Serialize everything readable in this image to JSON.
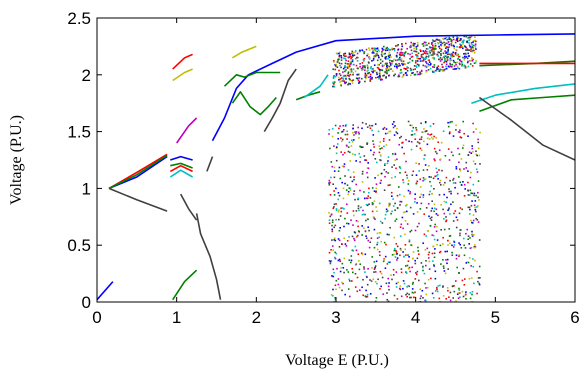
{
  "chart_data": {
    "type": "scatter",
    "title": "",
    "xlabel": "Voltage E (P.U.)",
    "ylabel": "Voltage  (P.U.)",
    "xlim": [
      0,
      6
    ],
    "ylim": [
      0,
      2.5
    ],
    "xticks": [
      "0",
      "1",
      "2",
      "3",
      "4",
      "5",
      "6"
    ],
    "yticks": [
      "0",
      "0.5",
      "1",
      "1.5",
      "2",
      "2.5"
    ],
    "grid": false,
    "colors": [
      "#0000ff",
      "#008000",
      "#ff0000",
      "#00bfbf",
      "#bf00bf",
      "#bfbf00",
      "#404040"
    ],
    "series": [
      {
        "color": "#0000ff",
        "points": [
          [
            0,
            0.02
          ],
          [
            0.2,
            0.18
          ]
        ]
      },
      {
        "color": "#0000ff",
        "points": [
          [
            0.15,
            1.0
          ],
          [
            0.5,
            1.1
          ],
          [
            0.88,
            1.28
          ]
        ]
      },
      {
        "color": "#404040",
        "points": [
          [
            0.15,
            1.0
          ],
          [
            0.5,
            0.9
          ],
          [
            0.88,
            0.8
          ]
        ]
      },
      {
        "color": "#ff0000",
        "points": [
          [
            0.15,
            1.0
          ],
          [
            0.5,
            1.14
          ],
          [
            0.88,
            1.3
          ]
        ]
      },
      {
        "color": "#008000",
        "points": [
          [
            0.15,
            1.0
          ],
          [
            0.5,
            1.12
          ],
          [
            0.88,
            1.29
          ]
        ]
      },
      {
        "color": "#0000ff",
        "points": [
          [
            0.92,
            1.25
          ],
          [
            1.05,
            1.28
          ],
          [
            1.2,
            1.25
          ]
        ]
      },
      {
        "color": "#00bfbf",
        "points": [
          [
            0.92,
            1.1
          ],
          [
            1.05,
            1.16
          ],
          [
            1.2,
            1.1
          ]
        ]
      },
      {
        "color": "#008000",
        "points": [
          [
            0.92,
            1.2
          ],
          [
            1.05,
            1.22
          ],
          [
            1.2,
            1.18
          ]
        ]
      },
      {
        "color": "#ff0000",
        "points": [
          [
            0.92,
            1.15
          ],
          [
            1.05,
            1.2
          ],
          [
            1.2,
            1.15
          ]
        ]
      },
      {
        "color": "#ff0000",
        "points": [
          [
            0.95,
            2.05
          ],
          [
            1.1,
            2.15
          ],
          [
            1.2,
            2.18
          ]
        ]
      },
      {
        "color": "#bfbf00",
        "points": [
          [
            0.95,
            1.95
          ],
          [
            1.1,
            2.02
          ],
          [
            1.2,
            2.05
          ]
        ]
      },
      {
        "color": "#bf00bf",
        "points": [
          [
            1.0,
            1.4
          ],
          [
            1.15,
            1.55
          ],
          [
            1.25,
            1.62
          ]
        ]
      },
      {
        "color": "#008000",
        "points": [
          [
            0.95,
            0.02
          ],
          [
            1.1,
            0.18
          ],
          [
            1.25,
            0.28
          ]
        ]
      },
      {
        "color": "#404040",
        "points": [
          [
            1.05,
            0.95
          ],
          [
            1.15,
            0.82
          ],
          [
            1.25,
            0.72
          ]
        ]
      },
      {
        "color": "#404040",
        "points": [
          [
            1.25,
            0.78
          ],
          [
            1.3,
            0.6
          ],
          [
            1.42,
            0.4
          ],
          [
            1.5,
            0.2
          ],
          [
            1.55,
            0.02
          ]
        ]
      },
      {
        "color": "#404040",
        "points": [
          [
            1.38,
            1.15
          ],
          [
            1.45,
            1.28
          ]
        ]
      },
      {
        "color": "#0000ff",
        "points": [
          [
            1.45,
            1.42
          ],
          [
            1.6,
            1.62
          ],
          [
            1.75,
            1.88
          ],
          [
            1.9,
            2.0
          ],
          [
            2.2,
            2.1
          ],
          [
            2.5,
            2.2
          ],
          [
            3.0,
            2.3
          ],
          [
            4.0,
            2.34
          ],
          [
            5.0,
            2.35
          ],
          [
            6.0,
            2.36
          ]
        ]
      },
      {
        "color": "#008000",
        "points": [
          [
            1.6,
            1.9
          ],
          [
            1.75,
            2.0
          ],
          [
            1.85,
            1.98
          ],
          [
            2.0,
            2.02
          ],
          [
            2.3,
            2.02
          ]
        ]
      },
      {
        "color": "#bfbf00",
        "points": [
          [
            1.7,
            2.15
          ],
          [
            1.82,
            2.2
          ],
          [
            2.0,
            2.25
          ]
        ]
      },
      {
        "color": "#008000",
        "points": [
          [
            1.7,
            1.75
          ],
          [
            1.8,
            1.85
          ],
          [
            1.92,
            1.72
          ],
          [
            2.05,
            1.65
          ],
          [
            2.15,
            1.72
          ],
          [
            2.25,
            1.8
          ]
        ]
      },
      {
        "color": "#404040",
        "points": [
          [
            2.1,
            1.5
          ],
          [
            2.2,
            1.62
          ],
          [
            2.3,
            1.75
          ],
          [
            2.4,
            1.95
          ],
          [
            2.5,
            2.05
          ]
        ]
      },
      {
        "color": "#008000",
        "points": [
          [
            2.5,
            1.78
          ],
          [
            2.65,
            1.82
          ],
          [
            2.8,
            1.85
          ]
        ]
      },
      {
        "color": "#00bfbf",
        "points": [
          [
            2.6,
            1.8
          ],
          [
            2.8,
            1.9
          ],
          [
            2.9,
            2.0
          ]
        ]
      },
      {
        "color": "#008000",
        "points": [
          [
            4.8,
            2.08
          ],
          [
            5.5,
            2.1
          ],
          [
            6.0,
            2.12
          ]
        ]
      },
      {
        "color": "#ff0000",
        "points": [
          [
            4.8,
            2.1
          ],
          [
            5.5,
            2.1
          ],
          [
            6.0,
            2.1
          ]
        ]
      },
      {
        "color": "#00bfbf",
        "points": [
          [
            4.7,
            1.75
          ],
          [
            5.0,
            1.82
          ],
          [
            5.5,
            1.88
          ],
          [
            6.0,
            1.92
          ]
        ]
      },
      {
        "color": "#008000",
        "points": [
          [
            4.8,
            1.68
          ],
          [
            5.2,
            1.78
          ],
          [
            5.6,
            1.8
          ],
          [
            6.0,
            1.82
          ]
        ]
      },
      {
        "color": "#404040",
        "points": [
          [
            4.8,
            1.8
          ],
          [
            5.2,
            1.6
          ],
          [
            5.6,
            1.38
          ],
          [
            6.0,
            1.25
          ]
        ]
      }
    ],
    "chaotic_regions": [
      {
        "x": [
          2.95,
          4.75
        ],
        "y": [
          1.9,
          2.38
        ]
      },
      {
        "x": [
          2.9,
          4.8
        ],
        "y": [
          0.0,
          1.6
        ]
      }
    ]
  }
}
